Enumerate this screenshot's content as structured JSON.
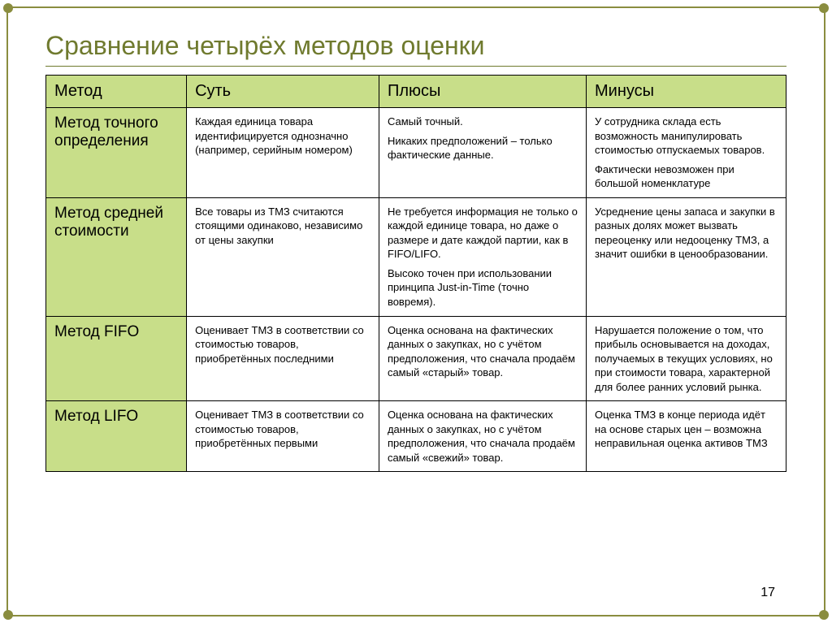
{
  "title": "Сравнение четырёх методов оценки",
  "page_number": "17",
  "colors": {
    "frame_border": "#8a8d3f",
    "title_color": "#6f7a2e",
    "header_bg": "#c8de89",
    "cell_border": "#000000",
    "body_bg": "#ffffff"
  },
  "table": {
    "columns": [
      "Метод",
      "Суть",
      "Плюсы",
      "Минусы"
    ],
    "col_widths_pct": [
      19,
      26,
      28,
      27
    ],
    "header_fontsize": 20,
    "method_fontsize": 19,
    "body_fontsize": 13,
    "rows": [
      {
        "method": "Метод точного определения",
        "essence": [
          "Каждая единица товара идентифицируется однозначно (например, серийным номером)"
        ],
        "pros": [
          "Самый точный.",
          "Никаких предположений – только фактические данные."
        ],
        "cons": [
          "У сотрудника склада есть возможность манипулировать стоимостью отпускаемых товаров.",
          "Фактически невозможен при большой номенклатуре"
        ]
      },
      {
        "method": "Метод средней стоимости",
        "essence": [
          "Все товары из ТМЗ считаются стоящими одинаково, независимо от цены закупки"
        ],
        "pros": [
          "Не требуется информация не только о каждой единице товара, но даже о размере и дате каждой партии, как в FIFO/LIFO.",
          "Высоко точен при использовании принципа Just-in-Time (точно вовремя)."
        ],
        "cons": [
          "Усреднение цены запаса и закупки в разных долях может вызвать переоценку или недооценку ТМЗ, а значит ошибки в ценообразовании."
        ]
      },
      {
        "method": "Метод FIFO",
        "essence": [
          "Оценивает ТМЗ в соответствии со стоимостью товаров, приобретённых последними"
        ],
        "pros": [
          "Оценка основана на фактических данных о закупках, но с учётом предположения, что сначала продаём самый «старый» товар."
        ],
        "cons": [
          "Нарушается положение о том, что прибыль основывается на доходах, получаемых в текущих условиях, но при стоимости товара, характерной для более ранних условий рынка."
        ]
      },
      {
        "method": "Метод LIFO",
        "essence": [
          "Оценивает ТМЗ в соответствии со стоимостью товаров, приобретённых первыми"
        ],
        "pros": [
          "Оценка основана на фактических данных о закупках, но с учётом предположения, что сначала продаём самый «свежий» товар."
        ],
        "cons": [
          "Оценка ТМЗ в конце периода идёт на основе старых цен – возможна неправильная оценка активов ТМЗ"
        ]
      }
    ]
  }
}
